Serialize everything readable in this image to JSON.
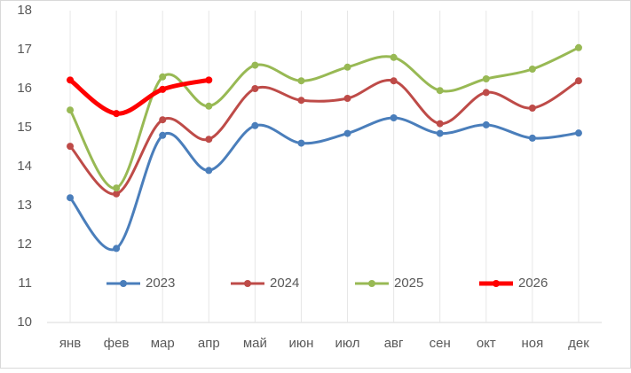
{
  "chart_data": {
    "type": "line",
    "categories": [
      "янв",
      "фев",
      "мар",
      "апр",
      "май",
      "июн",
      "июл",
      "авг",
      "сен",
      "окт",
      "ноя",
      "дек"
    ],
    "series": [
      {
        "name": "2023",
        "color": "#4a7ebb",
        "values": [
          13.2,
          11.9,
          14.8,
          13.9,
          15.05,
          14.6,
          14.85,
          15.25,
          14.85,
          15.07,
          14.73,
          14.86
        ]
      },
      {
        "name": "2024",
        "color": "#be4b48",
        "values": [
          14.52,
          13.3,
          15.2,
          14.7,
          16.0,
          15.7,
          15.75,
          16.2,
          15.1,
          15.9,
          15.5,
          16.2
        ]
      },
      {
        "name": "2025",
        "color": "#98b954",
        "values": [
          15.45,
          13.45,
          16.3,
          15.55,
          16.6,
          16.2,
          16.55,
          16.8,
          15.95,
          16.25,
          16.5,
          17.05
        ]
      },
      {
        "name": "2026",
        "color": "#ff0000",
        "values": [
          16.22,
          15.36,
          15.98,
          16.22,
          null,
          null,
          null,
          null,
          null,
          null,
          null,
          null
        ]
      }
    ],
    "ylim": [
      10,
      18
    ],
    "yticks": [
      10,
      11,
      12,
      13,
      14,
      15,
      16,
      17,
      18
    ],
    "grid": true,
    "smooth": true,
    "legend": "bottom"
  }
}
